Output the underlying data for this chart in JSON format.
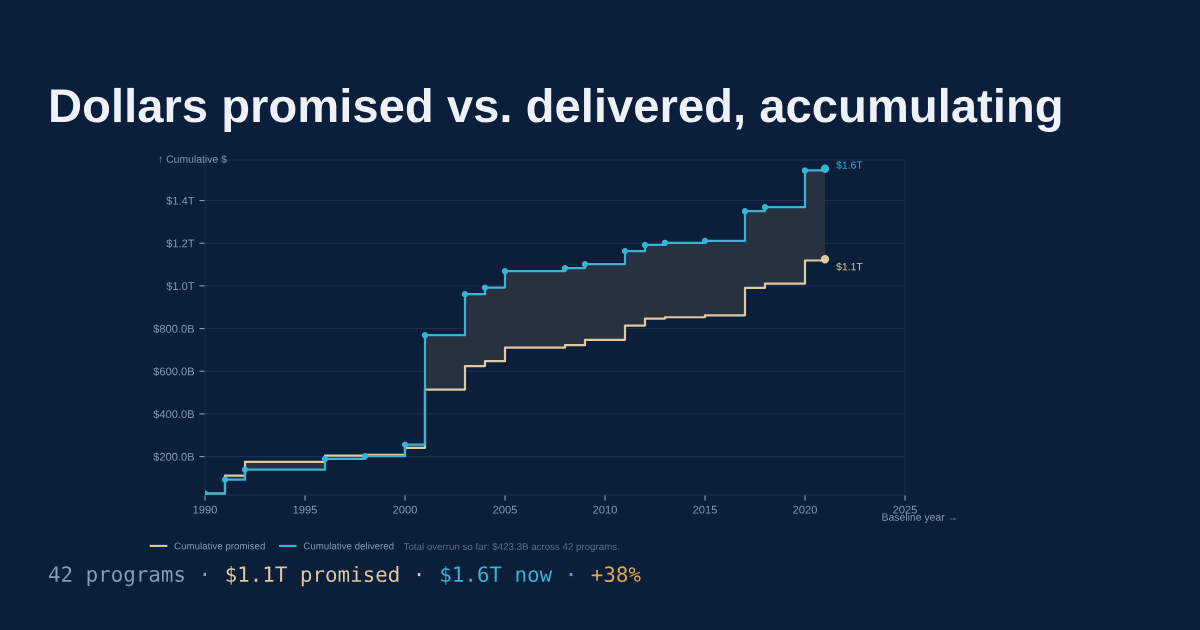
{
  "chart_data": {
    "type": "step",
    "title": "Dollars promised vs. delivered, accumulating",
    "xlabel": "Baseline year →",
    "ylabel": "↑ Cumulative $",
    "x": [
      1990,
      1991,
      1992,
      1996,
      1998,
      2000,
      2001,
      2003,
      2004,
      2005,
      2008,
      2009,
      2011,
      2012,
      2013,
      2015,
      2017,
      2018,
      2020,
      2021
    ],
    "series": [
      {
        "name": "Cumulative promised",
        "color": "#e0c9a0",
        "marker": "none",
        "values": [
          27000000000.0,
          111000000000.0,
          175000000000.0,
          205000000000.0,
          208000000000.0,
          241000000000.0,
          514000000000.0,
          624000000000.0,
          647000000000.0,
          711000000000.0,
          722000000000.0,
          747000000000.0,
          814000000000.0,
          847000000000.0,
          853000000000.0,
          862000000000.0,
          991000000000.0,
          1011000000000.0,
          1119000000000.0,
          1125000000000.0
        ]
      },
      {
        "name": "Cumulative delivered",
        "color": "#3ab3d4",
        "marker": "circle",
        "values": [
          27000000000.0,
          92000000000.0,
          139000000000.0,
          189000000000.0,
          202000000000.0,
          256000000000.0,
          769000000000.0,
          961000000000.0,
          992000000000.0,
          1069000000000.0,
          1083000000000.0,
          1102000000000.0,
          1163000000000.0,
          1192000000000.0,
          1202000000000.0,
          1211000000000.0,
          1350000000000.0,
          1369000000000.0,
          1541000000000.0,
          1549000000000.0
        ],
        "lower": [
          27000000000.0,
          111000000000.0,
          175000000000.0,
          205000000000.0,
          208000000000.0,
          241000000000.0,
          514000000000.0,
          624000000000.0,
          647000000000.0,
          711000000000.0,
          722000000000.0,
          747000000000.0,
          814000000000.0,
          847000000000.0,
          853000000000.0,
          862000000000.0,
          991000000000.0,
          1011000000000.0,
          1119000000000.0,
          1125000000000.0
        ],
        "upper": [
          27000000000.0,
          92000000000.0,
          139000000000.0,
          189000000000.0,
          202000000000.0,
          256000000000.0,
          769000000000.0,
          961000000000.0,
          992000000000.0,
          1069000000000.0,
          1083000000000.0,
          1102000000000.0,
          1163000000000.0,
          1192000000000.0,
          1202000000000.0,
          1211000000000.0,
          1350000000000.0,
          1369000000000.0,
          1541000000000.0,
          1549000000000.0
        ]
      }
    ],
    "xlim": [
      1990,
      2025
    ],
    "xticks": [
      1990,
      1995,
      2000,
      2005,
      2010,
      2015,
      2020,
      2025
    ],
    "ylim": [
      20000000000.0,
      1590000000000.0
    ],
    "yticks": [
      {
        "value": 200000000000.0,
        "label": "$200.0B"
      },
      {
        "value": 400000000000.0,
        "label": "$400.0B"
      },
      {
        "value": 600000000000.0,
        "label": "$600.0B"
      },
      {
        "value": 800000000000.0,
        "label": "$800.0B"
      },
      {
        "value": 1000000000000.0,
        "label": "$1.0T"
      },
      {
        "value": 1200000000000.0,
        "label": "$1.2T"
      },
      {
        "value": 1400000000000.0,
        "label": "$1.4T"
      }
    ],
    "grid": "y",
    "legend": "bottom",
    "annotations": [
      {
        "text": "$1.6T",
        "x": 2021,
        "y": 1549000000000.0
      },
      {
        "text": "$1.1T",
        "x": 2021,
        "y": 1125000000000.0
      },
      "Total overrun so far: $423.3B across 42 programs.",
      "42 programs · $1.1T promised · $1.6T now · +38%"
    ]
  }
}
